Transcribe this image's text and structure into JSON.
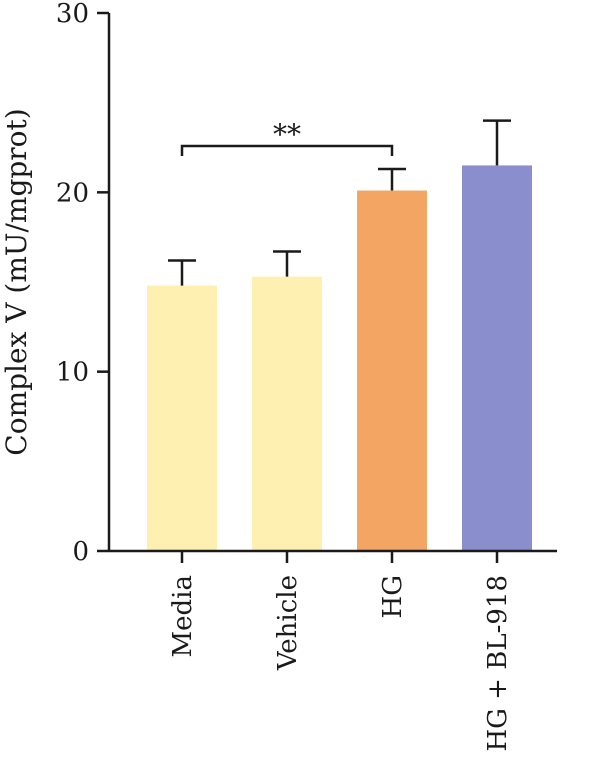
{
  "chart_data": {
    "type": "bar",
    "title": "",
    "xlabel": "",
    "ylabel": "Complex V (mU/mgprot)",
    "ylim": [
      0,
      30
    ],
    "yticks": [
      0,
      10,
      20,
      30
    ],
    "categories": [
      "Media",
      "Vehicle",
      "HG",
      "HG + BL-918"
    ],
    "values": [
      14.8,
      15.3,
      20.1,
      21.5
    ],
    "errors": [
      1.4,
      1.4,
      1.2,
      2.5
    ],
    "colors": [
      "#fdf0b0",
      "#fdf0b0",
      "#f3a564",
      "#8a8ecd"
    ],
    "grid": false,
    "annotations": [
      {
        "type": "significance",
        "from": "Media",
        "to": "HG",
        "text": "**"
      }
    ]
  }
}
